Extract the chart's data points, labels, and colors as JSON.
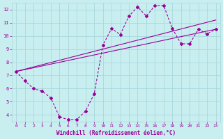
{
  "bg_color": "#c8eef0",
  "grid_color": "#a8d8dc",
  "line_color": "#990099",
  "xlim": [
    -0.5,
    23.5
  ],
  "ylim": [
    3.5,
    12.5
  ],
  "xticks": [
    0,
    1,
    2,
    3,
    4,
    5,
    6,
    7,
    8,
    9,
    10,
    11,
    12,
    13,
    14,
    15,
    16,
    17,
    18,
    19,
    20,
    21,
    22,
    23
  ],
  "yticks": [
    4,
    5,
    6,
    7,
    8,
    9,
    10,
    11,
    12
  ],
  "xlabel": "Windchill (Refroidissement éolien,°C)",
  "curve1_x": [
    0,
    1,
    2,
    3,
    4,
    5,
    6,
    7,
    8,
    9,
    10,
    11,
    12,
    13,
    14,
    15,
    16,
    17,
    18,
    19,
    20,
    21,
    22,
    23
  ],
  "curve1_y": [
    7.3,
    6.6,
    6.0,
    5.8,
    5.3,
    3.85,
    3.65,
    3.65,
    4.3,
    5.6,
    9.3,
    10.55,
    10.1,
    11.5,
    12.2,
    11.5,
    12.3,
    12.3,
    10.55,
    9.4,
    9.4,
    10.5,
    10.15,
    10.5
  ],
  "curve2_x": [
    0,
    23
  ],
  "curve2_y": [
    7.3,
    10.5
  ],
  "curve3_x": [
    0,
    23
  ],
  "curve3_y": [
    7.3,
    11.2
  ]
}
